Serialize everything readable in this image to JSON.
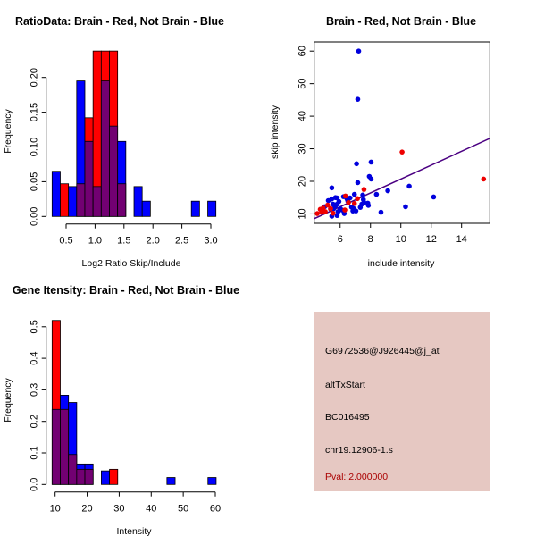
{
  "chart_data": [
    {
      "type": "bar",
      "subtype": "overlaid-histogram",
      "title": "RatioData: Brain - Red, Not Brain - Blue",
      "xlabel": "Log2 Ratio Skip/Include",
      "ylabel": "Frequency",
      "xticks": [
        "0.5",
        "1.0",
        "1.5",
        "2.0",
        "2.5",
        "3.0"
      ],
      "xtick_values": [
        0.5,
        1.0,
        1.5,
        2.0,
        2.5,
        3.0
      ],
      "yticks": [
        "0.00",
        "0.05",
        "0.10",
        "0.15",
        "0.20"
      ],
      "ytick_values": [
        0,
        0.05,
        0.1,
        0.15,
        0.2
      ],
      "bin_start": 0.258,
      "bin_width": 0.1415,
      "series": [
        {
          "name": "Not Brain",
          "color": "#0000ff",
          "values": [
            0.065,
            0,
            0.043,
            0.195,
            0.108,
            0.043,
            0.195,
            0.13,
            0.108,
            0,
            0.043,
            0.022,
            0,
            0,
            0,
            0,
            0,
            0.022,
            0,
            0.022
          ]
        },
        {
          "name": "Brain",
          "color": "#ff0000",
          "values": [
            0,
            0.047,
            0,
            0.047,
            0.142,
            0.238,
            0.238,
            0.238,
            0.047,
            0,
            0,
            0,
            0,
            0,
            0,
            0,
            0,
            0,
            0,
            0
          ]
        }
      ],
      "overlap_color": "#720072"
    },
    {
      "type": "scatter",
      "title": "Brain - Red, Not Brain - Blue",
      "xlabel": "include intensity",
      "ylabel": "skip intensity",
      "xlim": [
        4.29,
        15.86
      ],
      "ylim": [
        7.1,
        62.8
      ],
      "xticks": [
        "6",
        "8",
        "10",
        "12",
        "14"
      ],
      "xtick_values": [
        6,
        8,
        10,
        12,
        14
      ],
      "yticks": [
        "10",
        "20",
        "30",
        "40",
        "50",
        "60"
      ],
      "ytick_values": [
        10,
        20,
        30,
        40,
        50,
        60
      ],
      "fit_line": {
        "intercept": -0.6,
        "slope": 2.13,
        "color": "#4b0082"
      },
      "series": [
        {
          "name": "Not Brain",
          "color": "#0000dd",
          "points": [
            [
              7.22,
              60
            ],
            [
              7.16,
              45.2
            ],
            [
              7.08,
              25.4
            ],
            [
              8.04,
              25.9
            ],
            [
              7.92,
              21.5
            ],
            [
              8.04,
              20.7
            ],
            [
              7.16,
              19.6
            ],
            [
              5.45,
              18
            ],
            [
              10.55,
              18.5
            ],
            [
              9.14,
              17.1
            ],
            [
              12.16,
              15.2
            ],
            [
              8.39,
              16
            ],
            [
              10.31,
              12.2
            ],
            [
              8.69,
              10.5
            ],
            [
              6.94,
              16
            ],
            [
              7.53,
              14.4
            ],
            [
              7.82,
              13.3
            ],
            [
              7.86,
              12.6
            ],
            [
              7.33,
              12
            ],
            [
              6.9,
              11.6
            ],
            [
              7.04,
              10.9
            ],
            [
              6.84,
              10.9
            ],
            [
              6.27,
              10.1
            ],
            [
              5.8,
              9.5
            ],
            [
              5.45,
              9.3
            ],
            [
              4.98,
              12.2
            ],
            [
              5.22,
              14.1
            ],
            [
              5.45,
              14.6
            ],
            [
              5.69,
              15
            ],
            [
              5.92,
              13.8
            ],
            [
              5.8,
              13
            ],
            [
              5.69,
              12.4
            ],
            [
              5.57,
              11.6
            ],
            [
              6,
              11.6
            ],
            [
              6.12,
              11.2
            ],
            [
              6.22,
              15.3
            ],
            [
              6.45,
              14.6
            ],
            [
              6.65,
              14.9
            ],
            [
              6.51,
              13.9
            ],
            [
              7.49,
              15.8
            ],
            [
              7.57,
              13.5
            ],
            [
              5.8,
              14.9
            ],
            [
              5.53,
              13
            ],
            [
              5.37,
              11.5
            ],
            [
              5.86,
              10.7
            ],
            [
              6.75,
              12.1
            ],
            [
              7.43,
              13
            ]
          ]
        },
        {
          "name": "Brain",
          "color": "#ee0000",
          "points": [
            [
              10.08,
              29
            ],
            [
              15.45,
              20.7
            ],
            [
              7.57,
              17.5
            ],
            [
              7.14,
              14.7
            ],
            [
              6.35,
              15.5
            ],
            [
              6.94,
              13.2
            ],
            [
              6.31,
              11.2
            ],
            [
              5.18,
              12.7
            ],
            [
              4.69,
              11.4
            ],
            [
              4.78,
              10.5
            ],
            [
              4.49,
              10.1
            ],
            [
              5.02,
              10.7
            ],
            [
              5.37,
              11.6
            ],
            [
              5.53,
              10.2
            ],
            [
              4.88,
              11.8
            ],
            [
              6.55,
              13.5
            ]
          ]
        }
      ]
    },
    {
      "type": "bar",
      "subtype": "overlaid-histogram",
      "title": "Gene Itensity: Brain - Red, Not Brain - Blue",
      "xlabel": "Intensity",
      "ylabel": "Frequency",
      "xticks": [
        "10",
        "20",
        "30",
        "40",
        "50",
        "60"
      ],
      "xtick_values": [
        10,
        20,
        30,
        40,
        50,
        60
      ],
      "yticks": [
        "0.0",
        "0.1",
        "0.2",
        "0.3",
        "0.4",
        "0.5"
      ],
      "ytick_values": [
        0,
        0.1,
        0.2,
        0.3,
        0.4,
        0.5
      ],
      "bin_start": 9.06,
      "bin_width": 2.56,
      "series": [
        {
          "name": "Not Brain",
          "color": "#0000ff",
          "values": [
            0.238,
            0.283,
            0.26,
            0.065,
            0.065,
            0,
            0.043,
            0,
            0,
            0,
            0,
            0,
            0,
            0,
            0.022,
            0,
            0,
            0,
            0,
            0.022
          ]
        },
        {
          "name": "Brain",
          "color": "#ff0000",
          "values": [
            0.52,
            0.238,
            0.095,
            0.048,
            0.048,
            0,
            0,
            0.048,
            0,
            0,
            0,
            0,
            0,
            0,
            0,
            0,
            0,
            0,
            0,
            0
          ]
        }
      ],
      "overlap_color": "#720072"
    }
  ],
  "info_panel": {
    "background": "#e6c8c2",
    "probe_id": "G6972536@J926445@j_at",
    "event_type": "altTxStart",
    "accession": "BC016495",
    "cluster": "chr19.12906-1.s",
    "pval": "Pval: 2.000000",
    "pval_color": "#aa0000"
  }
}
